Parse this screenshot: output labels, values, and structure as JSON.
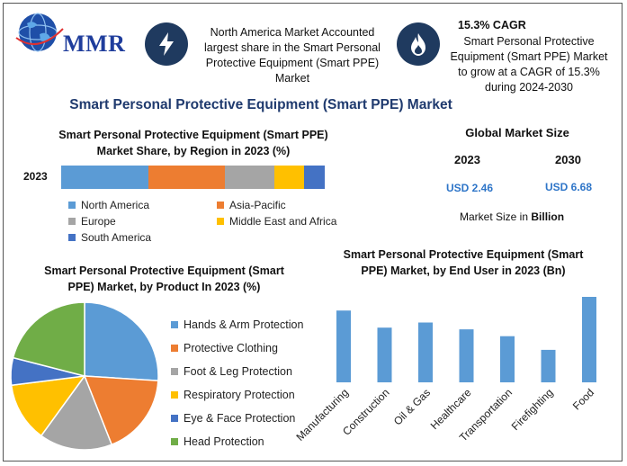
{
  "header": {
    "logo": {
      "name": "globe-logo-icon",
      "text": "MMR"
    },
    "highlight1": {
      "icon": "lightning-icon",
      "text": "North America Market Accounted largest share in the Smart Personal Protective Equipment (Smart PPE) Market"
    },
    "highlight2": {
      "icon": "flame-icon",
      "title": "15.3% CAGR",
      "text": "Smart Personal Protective Equipment (Smart PPE) Market to grow at a CAGR of 15.3% during 2024-2030"
    }
  },
  "main_title": "Smart Personal Protective Equipment (Smart PPE) Market",
  "market_size": {
    "title": "Global Market Size",
    "years": [
      "2023",
      "2030"
    ],
    "values": [
      "USD 2.46",
      "USD 6.68"
    ],
    "note_prefix": "Market Size in ",
    "note_unit": "Billion"
  },
  "colors": {
    "north_america": "#5b9bd5",
    "asia_pacific": "#ed7d31",
    "europe": "#a5a5a5",
    "middle_east_africa": "#ffc000",
    "south_america": "#4472c4",
    "head_protection": "#70ad47",
    "bar_blue": "#5b9bd5",
    "title_blue": "#1f3a6e"
  },
  "chart_data": [
    {
      "type": "bar",
      "orientation": "horizontal-stacked",
      "title": "Smart Personal Protective Equipment (Smart PPE) Market Share, by Region in 2023 (%)",
      "categories": [
        "2023"
      ],
      "series": [
        {
          "name": "North America",
          "values": [
            33
          ]
        },
        {
          "name": "Asia-Pacific",
          "values": [
            29
          ]
        },
        {
          "name": "Europe",
          "values": [
            19
          ]
        },
        {
          "name": "Middle East and Africa",
          "values": [
            11
          ]
        },
        {
          "name": "South America",
          "values": [
            8
          ]
        }
      ],
      "legend": "bottom"
    },
    {
      "type": "pie",
      "title": "Smart Personal Protective Equipment (Smart PPE) Market, by Product In 2023 (%)",
      "labels": [
        "Hands & Arm Protection",
        "Protective Clothing",
        "Foot & Leg Protection",
        "Respiratory Protection",
        "Eye & Face Protection",
        "Head Protection"
      ],
      "values": [
        26,
        18,
        16,
        13,
        6,
        21
      ],
      "legend": "right"
    },
    {
      "type": "bar",
      "title": "Smart Personal Protective Equipment (Smart PPE) Market, by End User in 2023 (Bn)",
      "categories": [
        "Manufacturing",
        "Construction",
        "Oil & Gas",
        "Healthcare",
        "Transportation",
        "Firefighting",
        "Food"
      ],
      "values": [
        0.42,
        0.32,
        0.35,
        0.31,
        0.27,
        0.19,
        0.5
      ],
      "ylim": [
        0,
        0.5
      ],
      "grid": false
    }
  ]
}
